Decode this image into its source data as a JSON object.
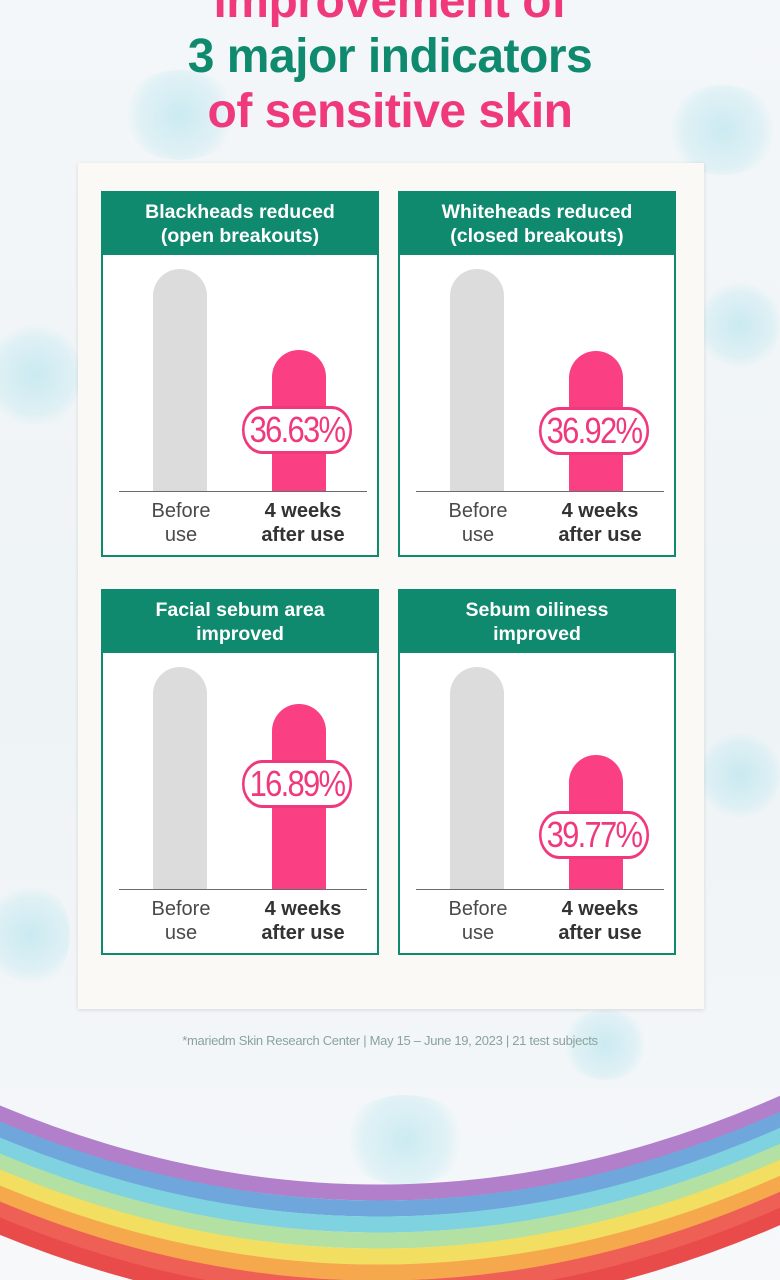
{
  "title": {
    "line1": "improvement of",
    "line2": "3 major indicators",
    "line3": "of sensitive skin"
  },
  "chart_data": [
    {
      "type": "bar",
      "title": "Blackheads reduced\n(open breakouts)",
      "categories": [
        "Before use",
        "4 weeks after use"
      ],
      "annotation": "36.63%",
      "series": [
        {
          "values": [
            100,
            63.37
          ]
        }
      ],
      "colors": [
        "#dcdcdc",
        "#fb3f83"
      ]
    },
    {
      "type": "bar",
      "title": "Whiteheads reduced\n(closed breakouts)",
      "categories": [
        "Before use",
        "4 weeks after use"
      ],
      "annotation": "36.92%",
      "series": [
        {
          "values": [
            100,
            63.08
          ]
        }
      ],
      "colors": [
        "#dcdcdc",
        "#fb3f83"
      ]
    },
    {
      "type": "bar",
      "title": "Facial sebum area\nimproved",
      "categories": [
        "Before use",
        "4 weeks after use"
      ],
      "annotation": "16.89%",
      "series": [
        {
          "values": [
            100,
            83.11
          ]
        }
      ],
      "colors": [
        "#dcdcdc",
        "#fb3f83"
      ]
    },
    {
      "type": "bar",
      "title": "Sebum oiliness\nimproved",
      "categories": [
        "Before use",
        "4 weeks after use"
      ],
      "annotation": "39.77%",
      "series": [
        {
          "values": [
            100,
            60.23
          ]
        }
      ],
      "colors": [
        "#dcdcdc",
        "#fb3f83"
      ]
    }
  ],
  "labels": {
    "before_line1": "Before",
    "before_line2": "use",
    "after_line1": "4 weeks",
    "after_line2": "after use"
  },
  "footnote": "*mariedm Skin Research Center | May 15 – June 19, 2023 | 21 test subjects",
  "colors": {
    "accent_pink": "#f0397d",
    "accent_green": "#0f8a6e",
    "bar_before": "#dcdcdc",
    "bar_after": "#fb3f83"
  }
}
